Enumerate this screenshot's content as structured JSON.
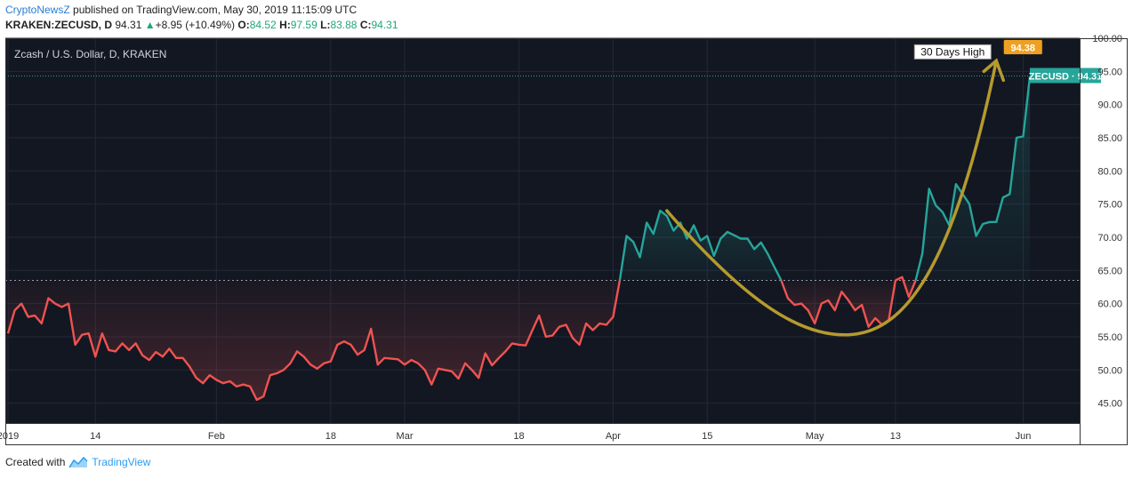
{
  "header": {
    "brand": "CryptoNewsZ",
    "published": "published on TradingView.com, May 30, 2019 11:15:09 UTC",
    "symbol": "KRAKEN:ZECUSD, D",
    "last": "94.31",
    "change": "+8.95 (+10.49%)",
    "o_label": "O:",
    "o": "84.52",
    "h_label": "H:",
    "h": "97.59",
    "l_label": "L:",
    "l": "83.88",
    "c_label": "C:",
    "c": "94.31"
  },
  "footer": {
    "created": "Created with",
    "brand": "TradingView"
  },
  "colors": {
    "background": "#131722",
    "down": "#ef5350",
    "up": "#26a69a",
    "annotation": "#b59a2e",
    "badge": "#f0a020"
  },
  "chart_data": {
    "type": "line",
    "title": "Zcash / U.S. Dollar, D, KRAKEN",
    "ylim": [
      42,
      100
    ],
    "y_ticks": [
      "100.00",
      "95.00",
      "90.00",
      "85.00",
      "80.00",
      "75.00",
      "70.00",
      "65.00",
      "60.00",
      "55.00",
      "50.00",
      "45.00"
    ],
    "x_ticks": [
      {
        "label": "2019",
        "day": 0
      },
      {
        "label": "14",
        "day": 13
      },
      {
        "label": "Feb",
        "day": 31
      },
      {
        "label": "18",
        "day": 48
      },
      {
        "label": "Mar",
        "day": 59
      },
      {
        "label": "18",
        "day": 76
      },
      {
        "label": "Apr",
        "day": 90
      },
      {
        "label": "15",
        "day": 104
      },
      {
        "label": "May",
        "day": 120
      },
      {
        "label": "13",
        "day": 132
      },
      {
        "label": "Jun",
        "day": 151
      }
    ],
    "x_range": [
      0,
      159
    ],
    "baseline": 63.5,
    "price_label": "ZECUSD · 94.31",
    "current_price": 94.31,
    "high_badge": "94.38",
    "high_price": 96.6,
    "high_day": 147,
    "annotation": "30 Days High",
    "series": [
      {
        "values": [
          [
            0,
            55.5
          ],
          [
            1,
            59
          ],
          [
            2,
            60
          ],
          [
            3,
            58
          ],
          [
            4,
            58.2
          ],
          [
            5,
            57
          ],
          [
            6,
            60.8
          ],
          [
            7,
            60
          ],
          [
            8,
            59.5
          ],
          [
            9,
            60
          ],
          [
            10,
            53.8
          ],
          [
            11,
            55.3
          ],
          [
            12,
            55.5
          ],
          [
            13,
            52
          ],
          [
            14,
            55.5
          ],
          [
            15,
            53
          ],
          [
            16,
            52.8
          ],
          [
            17,
            54
          ],
          [
            18,
            53
          ],
          [
            19,
            54
          ],
          [
            20,
            52.2
          ],
          [
            21,
            51.5
          ],
          [
            22,
            52.7
          ],
          [
            23,
            52
          ],
          [
            24,
            53.2
          ],
          [
            25,
            51.8
          ],
          [
            26,
            51.8
          ],
          [
            27,
            50.5
          ],
          [
            28,
            48.8
          ],
          [
            29,
            48
          ],
          [
            30,
            49.2
          ],
          [
            31,
            48.5
          ],
          [
            32,
            48
          ],
          [
            33,
            48.3
          ],
          [
            34,
            47.5
          ],
          [
            35,
            47.8
          ],
          [
            36,
            47.5
          ],
          [
            37,
            45.5
          ],
          [
            38,
            46
          ],
          [
            39,
            49.2
          ],
          [
            40,
            49.5
          ],
          [
            41,
            50
          ],
          [
            42,
            51
          ],
          [
            43,
            52.8
          ],
          [
            44,
            52
          ],
          [
            45,
            50.8
          ],
          [
            46,
            50.2
          ],
          [
            47,
            51
          ],
          [
            48,
            51.3
          ],
          [
            49,
            53.8
          ],
          [
            50,
            54.3
          ],
          [
            51,
            53.8
          ],
          [
            52,
            52.3
          ],
          [
            53,
            53
          ],
          [
            54,
            56.2
          ],
          [
            55,
            50.8
          ],
          [
            56,
            51.8
          ],
          [
            57,
            51.7
          ],
          [
            58,
            51.6
          ],
          [
            59,
            50.8
          ],
          [
            60,
            51.5
          ],
          [
            61,
            51
          ],
          [
            62,
            50
          ],
          [
            63,
            47.8
          ],
          [
            64,
            50.2
          ],
          [
            65,
            50
          ],
          [
            66,
            49.8
          ],
          [
            67,
            48.7
          ],
          [
            68,
            51
          ],
          [
            69,
            50
          ],
          [
            70,
            48.8
          ],
          [
            71,
            52.5
          ],
          [
            72,
            50.7
          ],
          [
            73,
            51.8
          ],
          [
            74,
            52.8
          ],
          [
            75,
            54
          ],
          [
            76,
            53.8
          ],
          [
            77,
            53.7
          ],
          [
            78,
            56
          ],
          [
            79,
            58.2
          ],
          [
            80,
            55
          ],
          [
            81,
            55.2
          ],
          [
            82,
            56.5
          ],
          [
            83,
            56.8
          ],
          [
            84,
            54.8
          ],
          [
            85,
            53.8
          ],
          [
            86,
            57
          ],
          [
            87,
            56
          ],
          [
            88,
            57
          ],
          [
            89,
            56.8
          ],
          [
            90,
            58
          ],
          [
            91,
            63.5
          ]
        ]
      },
      {
        "values": [
          [
            91,
            63.5
          ],
          [
            92,
            70.2
          ],
          [
            93,
            69.3
          ],
          [
            94,
            67
          ],
          [
            95,
            72.2
          ],
          [
            96,
            70.5
          ],
          [
            97,
            74
          ],
          [
            98,
            73.2
          ],
          [
            99,
            71
          ],
          [
            100,
            72.2
          ],
          [
            101,
            69.8
          ],
          [
            102,
            71.8
          ],
          [
            103,
            69.5
          ],
          [
            104,
            70.2
          ],
          [
            105,
            67.2
          ],
          [
            106,
            69.8
          ],
          [
            107,
            70.8
          ],
          [
            108,
            70.3
          ],
          [
            109,
            69.8
          ],
          [
            110,
            69.8
          ],
          [
            111,
            68.2
          ],
          [
            112,
            69.2
          ],
          [
            113,
            67.5
          ],
          [
            114,
            65.5
          ],
          [
            115,
            63.5
          ]
        ]
      },
      {
        "values": [
          [
            115,
            63.5
          ],
          [
            116,
            60.8
          ],
          [
            117,
            59.8
          ],
          [
            118,
            60
          ],
          [
            119,
            59
          ],
          [
            120,
            57
          ],
          [
            121,
            60
          ],
          [
            122,
            60.5
          ],
          [
            123,
            59
          ],
          [
            124,
            61.8
          ],
          [
            125,
            60.5
          ],
          [
            126,
            59
          ],
          [
            127,
            59.8
          ],
          [
            128,
            56.5
          ],
          [
            129,
            57.8
          ],
          [
            130,
            56.8
          ],
          [
            131,
            57.5
          ],
          [
            132,
            63.5
          ]
        ]
      },
      {
        "values": [
          [
            132,
            63.5
          ],
          [
            133,
            64
          ],
          [
            134,
            61
          ],
          [
            135,
            63.5
          ]
        ]
      },
      {
        "values": [
          [
            135,
            63.5
          ],
          [
            136,
            67.5
          ],
          [
            137,
            77.3
          ],
          [
            138,
            74.8
          ],
          [
            139,
            73.8
          ],
          [
            140,
            71.8
          ],
          [
            141,
            78
          ],
          [
            142,
            76.5
          ],
          [
            143,
            75
          ],
          [
            144,
            70.2
          ],
          [
            145,
            72
          ],
          [
            146,
            72.3
          ],
          [
            147,
            72.3
          ],
          [
            148,
            76
          ],
          [
            149,
            76.5
          ],
          [
            150,
            85
          ],
          [
            151,
            85.2
          ],
          [
            152,
            94.3
          ]
        ]
      }
    ]
  }
}
